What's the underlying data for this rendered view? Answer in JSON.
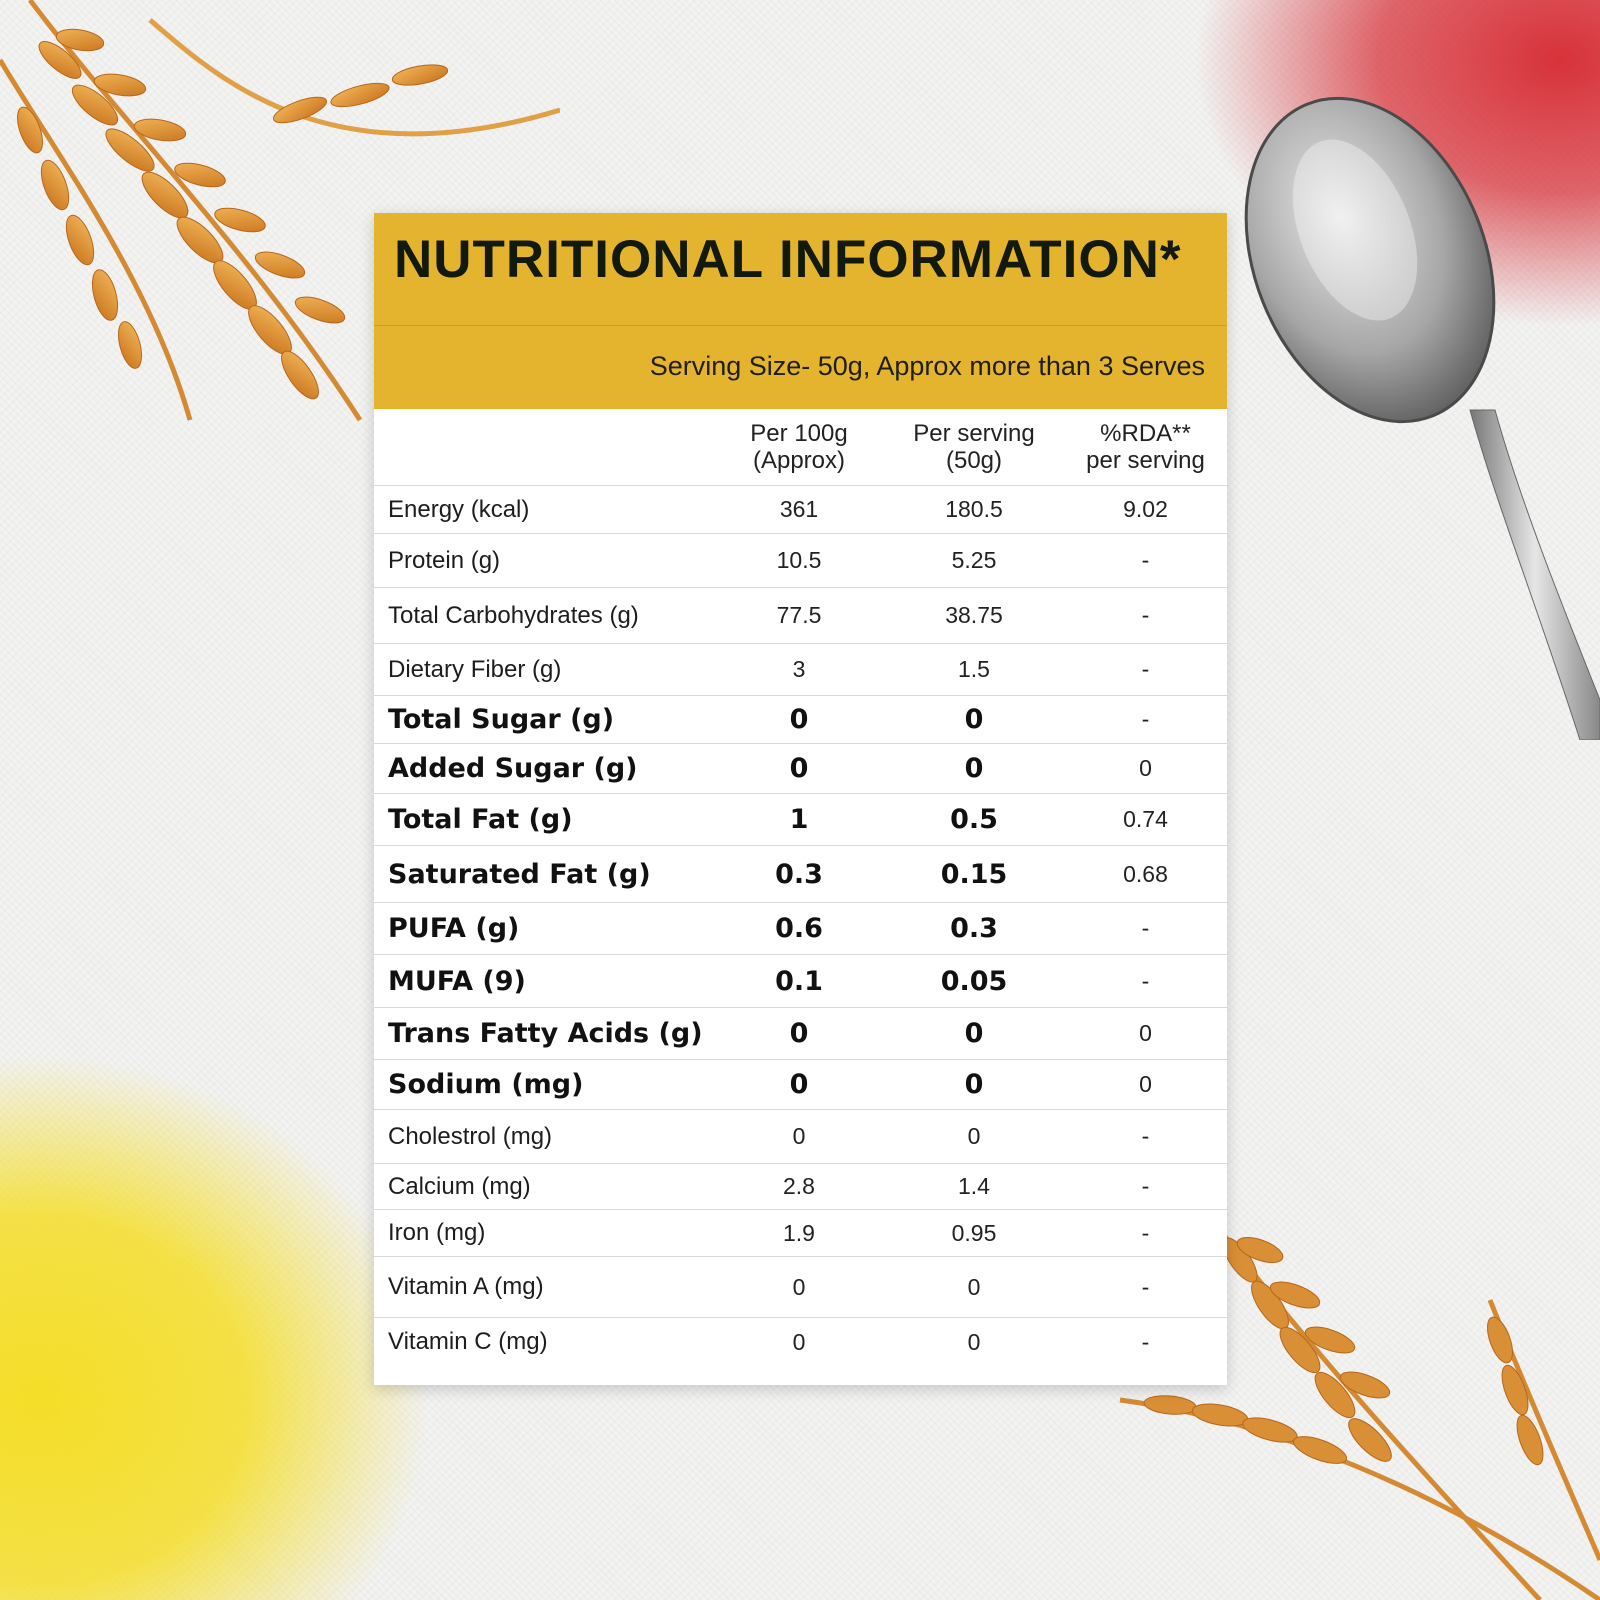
{
  "panel": {
    "title": "NUTRITIONAL INFORMATION*",
    "serving_note": "Serving Size- 50g, Approx more than 3 Serves"
  },
  "table": {
    "headers": [
      "",
      "Per 100g (Approx)",
      "Per serving (50g)",
      "%RDA** per serving"
    ],
    "rows": [
      {
        "name": "Energy (kcal)",
        "per100": "361",
        "perServing": "180.5",
        "rda": "9.02",
        "bold": false
      },
      {
        "name": "Protein (g)",
        "per100": "10.5",
        "perServing": "5.25",
        "rda": "-",
        "bold": false
      },
      {
        "name": "Total Carbohydrates (g)",
        "per100": "77.5",
        "perServing": "38.75",
        "rda": "-",
        "bold": false
      },
      {
        "name": "Dietary Fiber (g)",
        "per100": "3",
        "perServing": "1.5",
        "rda": "-",
        "bold": false
      },
      {
        "name": "Total Sugar (g)",
        "per100": "0",
        "perServing": "0",
        "rda": "-",
        "bold": true
      },
      {
        "name": "Added Sugar (g)",
        "per100": "0",
        "perServing": "0",
        "rda": "0",
        "bold": true
      },
      {
        "name": "Total Fat (g)",
        "per100": "1",
        "perServing": "0.5",
        "rda": "0.74",
        "bold": true
      },
      {
        "name": "Saturated Fat (g)",
        "per100": "0.3",
        "perServing": "0.15",
        "rda": "0.68",
        "bold": true
      },
      {
        "name": "PUFA (g)",
        "per100": "0.6",
        "perServing": "0.3",
        "rda": "-",
        "bold": true
      },
      {
        "name": "MUFA (9)",
        "per100": "0.1",
        "perServing": "0.05",
        "rda": "-",
        "bold": true
      },
      {
        "name": "Trans Fatty Acids (g)",
        "per100": "0",
        "perServing": "0",
        "rda": "0",
        "bold": true
      },
      {
        "name": "Sodium (mg)",
        "per100": "0",
        "perServing": "0",
        "rda": "0",
        "bold": true
      },
      {
        "name": "Cholestrol (mg)",
        "per100": "0",
        "perServing": "0",
        "rda": "-",
        "bold": false
      },
      {
        "name": "Calcium (mg)",
        "per100": "2.8",
        "perServing": "1.4",
        "rda": "-",
        "bold": false
      },
      {
        "name": "Iron (mg)",
        "per100": "1.9",
        "perServing": "0.95",
        "rda": "-",
        "bold": false
      },
      {
        "name": "Vitamin A (mg)",
        "per100": "0",
        "perServing": "0",
        "rda": "-",
        "bold": false
      },
      {
        "name": "Vitamin C (mg)",
        "per100": "0",
        "perServing": "0",
        "rda": "-",
        "bold": false
      }
    ]
  },
  "decor": {
    "icons": [
      "wheat-stalks-icon",
      "spoon-icon"
    ],
    "colors": {
      "panel_header": "#e5b42e",
      "red_powder": "#d62830",
      "yellow_powder": "#f5de28",
      "wheat": "#d9922f"
    }
  }
}
